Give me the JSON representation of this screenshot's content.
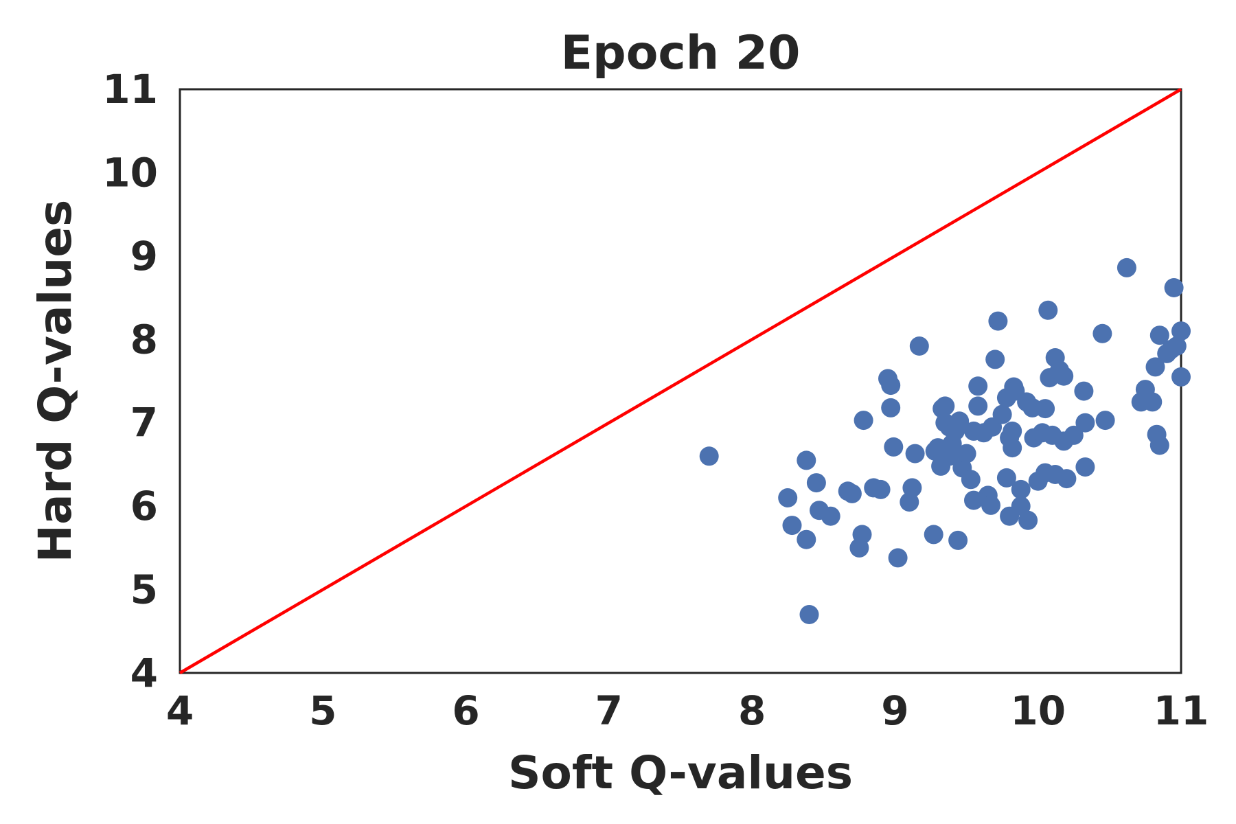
{
  "chart_data": {
    "type": "scatter",
    "title": "Epoch 20",
    "xlabel": "Soft Q-values",
    "ylabel": "Hard Q-values",
    "xlim": [
      4,
      11
    ],
    "ylim": [
      4,
      11
    ],
    "xticks": [
      "4",
      "5",
      "6",
      "7",
      "8",
      "9",
      "10",
      "11"
    ],
    "yticks": [
      "4",
      "5",
      "6",
      "7",
      "8",
      "9",
      "10",
      "11"
    ],
    "grid": false,
    "legend": "none",
    "reference_line": {
      "from": [
        4,
        4
      ],
      "to": [
        11,
        11
      ],
      "color": "#ff0000"
    },
    "point_color": "#4c72b0",
    "series": [
      {
        "points": [
          [
            7.7,
            6.6
          ],
          [
            8.25,
            6.1
          ],
          [
            8.28,
            5.77
          ],
          [
            8.38,
            6.55
          ],
          [
            8.38,
            5.6
          ],
          [
            8.4,
            4.7
          ],
          [
            8.45,
            6.28
          ],
          [
            8.47,
            5.95
          ],
          [
            8.55,
            5.88
          ],
          [
            8.67,
            6.18
          ],
          [
            8.7,
            6.15
          ],
          [
            8.75,
            5.5
          ],
          [
            8.77,
            5.66
          ],
          [
            8.78,
            7.03
          ],
          [
            8.85,
            6.22
          ],
          [
            8.9,
            6.2
          ],
          [
            8.95,
            7.53
          ],
          [
            8.97,
            7.45
          ],
          [
            8.97,
            7.18
          ],
          [
            8.99,
            6.71
          ],
          [
            9.02,
            5.38
          ],
          [
            9.1,
            6.05
          ],
          [
            9.12,
            6.22
          ],
          [
            9.14,
            6.63
          ],
          [
            9.17,
            7.92
          ],
          [
            9.27,
            5.66
          ],
          [
            9.28,
            6.66
          ],
          [
            9.3,
            6.7
          ],
          [
            9.32,
            6.48
          ],
          [
            9.33,
            7.17
          ],
          [
            9.35,
            7.0
          ],
          [
            9.35,
            7.2
          ],
          [
            9.38,
            6.95
          ],
          [
            9.38,
            6.6
          ],
          [
            9.4,
            6.75
          ],
          [
            9.42,
            6.9
          ],
          [
            9.44,
            5.59
          ],
          [
            9.45,
            7.02
          ],
          [
            9.47,
            6.46
          ],
          [
            9.5,
            6.63
          ],
          [
            9.53,
            6.32
          ],
          [
            9.55,
            6.07
          ],
          [
            9.55,
            6.9
          ],
          [
            9.58,
            7.44
          ],
          [
            9.58,
            7.2
          ],
          [
            9.62,
            6.88
          ],
          [
            9.65,
            6.13
          ],
          [
            9.67,
            6.01
          ],
          [
            9.68,
            6.95
          ],
          [
            9.7,
            7.76
          ],
          [
            9.72,
            8.22
          ],
          [
            9.75,
            7.1
          ],
          [
            9.78,
            7.3
          ],
          [
            9.78,
            6.34
          ],
          [
            9.8,
            6.82
          ],
          [
            9.8,
            5.88
          ],
          [
            9.82,
            6.9
          ],
          [
            9.82,
            6.7
          ],
          [
            9.83,
            7.43
          ],
          [
            9.84,
            7.38
          ],
          [
            9.88,
            6.0
          ],
          [
            9.88,
            6.2
          ],
          [
            9.92,
            7.25
          ],
          [
            9.93,
            5.83
          ],
          [
            9.96,
            7.18
          ],
          [
            9.97,
            6.82
          ],
          [
            10.0,
            6.3
          ],
          [
            10.03,
            6.88
          ],
          [
            10.05,
            6.4
          ],
          [
            10.05,
            7.17
          ],
          [
            10.07,
            8.35
          ],
          [
            10.08,
            7.54
          ],
          [
            10.1,
            6.85
          ],
          [
            10.12,
            7.78
          ],
          [
            10.12,
            6.38
          ],
          [
            10.15,
            7.63
          ],
          [
            10.18,
            6.78
          ],
          [
            10.18,
            7.56
          ],
          [
            10.2,
            6.33
          ],
          [
            10.25,
            6.85
          ],
          [
            10.32,
            7.38
          ],
          [
            10.33,
            6.47
          ],
          [
            10.33,
            7.0
          ],
          [
            10.45,
            8.07
          ],
          [
            10.47,
            7.03
          ],
          [
            10.62,
            8.86
          ],
          [
            10.72,
            7.25
          ],
          [
            10.75,
            7.4
          ],
          [
            10.8,
            7.25
          ],
          [
            10.82,
            7.67
          ],
          [
            10.83,
            6.86
          ],
          [
            10.85,
            6.73
          ],
          [
            10.85,
            8.05
          ],
          [
            10.9,
            7.83
          ],
          [
            10.93,
            7.88
          ],
          [
            10.95,
            8.62
          ],
          [
            10.97,
            7.92
          ],
          [
            11.0,
            8.1
          ],
          [
            11.0,
            7.55
          ]
        ]
      }
    ]
  }
}
